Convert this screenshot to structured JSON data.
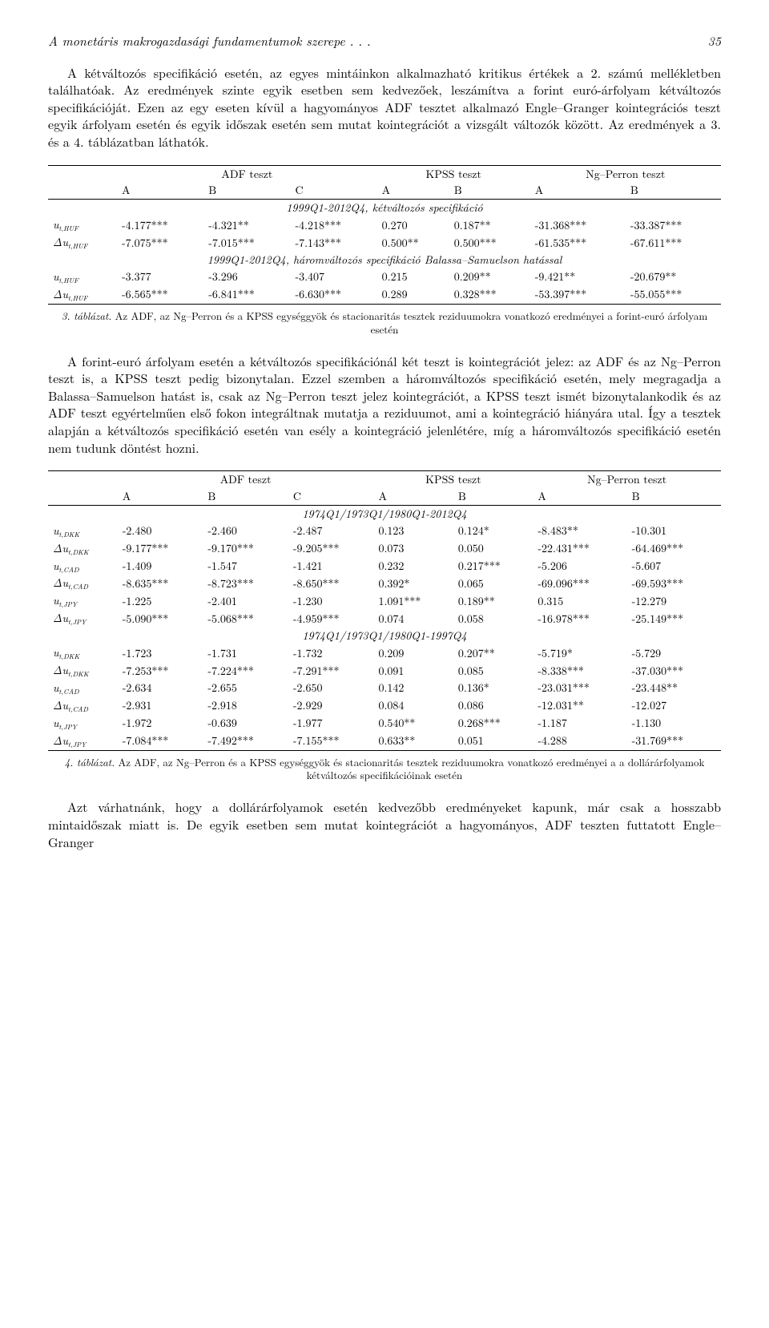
{
  "header": {
    "running_title": "A monetáris makrogazdasági fundamentumok szerepe . . .",
    "page_number": "35"
  },
  "para1": "A kétváltozós specifikáció esetén, az egyes mintáinkon alkalmazható kritikus értékek a 2. számú mellékletben találhatóak. Az eredmények szinte egyik esetben sem kedvezőek, leszámítva a forint euró-árfolyam kétváltozós specifikációját. Ezen az egy eseten kívül a hagyományos ADF tesztet alkalmazó Engle–Granger kointegrációs teszt egyik árfolyam esetén és egyik időszak esetén sem mutat kointegrációt a vizsgált változók között. Az eredmények a 3. és a 4. táblázatban láthatók.",
  "table3": {
    "group_headers": [
      "ADF teszt",
      "KPSS teszt",
      "Ng–Perron teszt"
    ],
    "col_headers": [
      "",
      "A",
      "B",
      "C",
      "A",
      "B",
      "A",
      "B"
    ],
    "section1_title": "1999Q1-2012Q4, kétváltozós specifikáció",
    "section1_rows": [
      [
        "u_{t,HUF}",
        "-4.177***",
        "-4.321**",
        "-4.218***",
        "0.270",
        "0.187**",
        "-31.368***",
        "-33.387***"
      ],
      [
        "Δu_{t,HUF}",
        "-7.075***",
        "-7.015***",
        "-7.143***",
        "0.500**",
        "0.500***",
        "-61.535***",
        "-67.611***"
      ]
    ],
    "section2_title": "1999Q1-2012Q4, háromváltozós specifikáció Balassa–Samuelson hatással",
    "section2_rows": [
      [
        "u_{t,HUF}",
        "-3.377",
        "-3.296",
        "-3.407",
        "0.215",
        "0.209**",
        "-9.421**",
        "-20.679**"
      ],
      [
        "Δu_{t,HUF}",
        "-6.565***",
        "-6.841***",
        "-6.630***",
        "0.289",
        "0.328***",
        "-53.397***",
        "-55.055***"
      ]
    ],
    "caption_lead": "3. táblázat.",
    "caption_text": "Az ADF, az Ng–Perron és a KPSS egységgyök és stacionaritás tesztek reziduumokra vonatkozó eredményei a forint-euró árfolyam esetén"
  },
  "para2": "A forint-euró árfolyam esetén a kétváltozós specifikációnál két teszt is kointegrációt jelez: az ADF és az Ng–Perron teszt is, a KPSS teszt pedig bizonytalan. Ezzel szemben a háromváltozós specifikáció esetén, mely megragadja a Balassa–Samuelson hatást is, csak az Ng–Perron teszt jelez kointegrációt, a KPSS teszt ismét bizonytalankodik és az ADF teszt egyértelműen első fokon integráltnak mutatja a reziduumot, ami a kointegráció hiányára utal. Így a tesztek alapján a kétváltozós specifikáció esetén van esély a kointegráció jelenlétére, míg a háromváltozós specifikáció esetén nem tudunk döntést hozni.",
  "table4": {
    "group_headers": [
      "ADF teszt",
      "KPSS teszt",
      "Ng–Perron teszt"
    ],
    "col_headers": [
      "",
      "A",
      "B",
      "C",
      "A",
      "B",
      "A",
      "B"
    ],
    "section1_title": "1974Q1/1973Q1/1980Q1-2012Q4",
    "section1_rows": [
      [
        "u_{t,DKK}",
        "-2.480",
        "-2.460",
        "-2.487",
        "0.123",
        "0.124*",
        "-8.483**",
        "-10.301"
      ],
      [
        "Δu_{t,DKK}",
        "-9.177***",
        "-9.170***",
        "-9.205***",
        "0.073",
        "0.050",
        "-22.431***",
        "-64.469***"
      ],
      [
        "u_{t,CAD}",
        "-1.409",
        "-1.547",
        "-1.421",
        "0.232",
        "0.217***",
        "-5.206",
        "-5.607"
      ],
      [
        "Δu_{t,CAD}",
        "-8.635***",
        "-8.723***",
        "-8.650***",
        "0.392*",
        "0.065",
        "-69.096***",
        "-69.593***"
      ],
      [
        "u_{t,JPY}",
        "-1.225",
        "-2.401",
        "-1.230",
        "1.091***",
        "0.189**",
        "0.315",
        "-12.279"
      ],
      [
        "Δu_{t,JPY}",
        "-5.090***",
        "-5.068***",
        "-4.959***",
        "0.074",
        "0.058",
        "-16.978***",
        "-25.149***"
      ]
    ],
    "section2_title": "1974Q1/1973Q1/1980Q1-1997Q4",
    "section2_rows": [
      [
        "u_{t,DKK}",
        "-1.723",
        "-1.731",
        "-1.732",
        "0.209",
        "0.207**",
        "-5.719*",
        "-5.729"
      ],
      [
        "Δu_{t,DKK}",
        "-7.253***",
        "-7.224***",
        "-7.291***",
        "0.091",
        "0.085",
        "-8.338***",
        "-37.030***"
      ],
      [
        "u_{t,CAD}",
        "-2.634",
        "-2.655",
        "-2.650",
        "0.142",
        "0.136*",
        "-23.031***",
        "-23.448**"
      ],
      [
        "Δu_{t,CAD}",
        "-2.931",
        "-2.918",
        "-2.929",
        "0.084",
        "0.086",
        "-12.031**",
        "-12.027"
      ],
      [
        "u_{t,JPY}",
        "-1.972",
        "-0.639",
        "-1.977",
        "0.540**",
        "0.268***",
        "-1.187",
        "-1.130"
      ],
      [
        "Δu_{t,JPY}",
        "-7.084***",
        "-7.492***",
        "-7.155***",
        "0.633**",
        "0.051",
        "-4.288",
        "-31.769***"
      ]
    ],
    "caption_lead": "4. táblázat.",
    "caption_text": "Az ADF, az Ng–Perron és a KPSS egységgyök és stacionaritás tesztek reziduumokra vonatkozó eredményei a a dollárárfolyamok kétváltozós specifikációinak esetén"
  },
  "para3": "Azt várhatnánk, hogy a dollárárfolyamok esetén kedvezőbb eredményeket kapunk, már csak a hosszabb mintaidőszak miatt is. De egyik esetben sem mutat kointegrációt a hagyományos, ADF teszten futtatott Engle–Granger"
}
